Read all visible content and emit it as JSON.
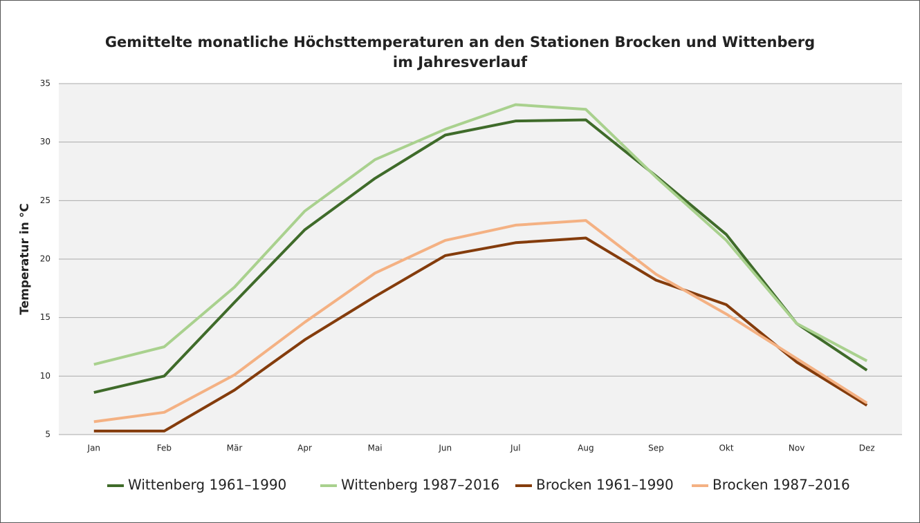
{
  "chart_data": {
    "type": "line",
    "title": [
      "Gemittelte monatliche Höchsttemperaturen an den Stationen Brocken und Wittenberg",
      "im Jahresverlauf"
    ],
    "y_label": "Temperatur in °C",
    "categories": [
      "Jan",
      "Feb",
      "Mär",
      "Apr",
      "Mai",
      "Jun",
      "Jul",
      "Aug",
      "Sep",
      "Okt",
      "Nov",
      "Dez"
    ],
    "series": [
      {
        "name": "Wittenberg 1961–1990",
        "color": "#3f6b2a",
        "values": [
          8.6,
          10.0,
          16.3,
          22.5,
          26.9,
          30.6,
          31.8,
          31.9,
          27.1,
          22.1,
          14.5,
          10.5
        ]
      },
      {
        "name": "Wittenberg 1987–2016",
        "color": "#a9d18e",
        "values": [
          11.0,
          12.5,
          17.6,
          24.1,
          28.5,
          31.1,
          33.2,
          32.8,
          27.0,
          21.6,
          14.5,
          11.3
        ]
      },
      {
        "name": "Brocken 1961–1990",
        "color": "#843c0c",
        "values": [
          5.3,
          5.3,
          8.8,
          13.1,
          16.8,
          20.3,
          21.4,
          21.8,
          18.2,
          16.1,
          11.2,
          7.5
        ]
      },
      {
        "name": "Brocken 1987–2016",
        "color": "#f4b183",
        "values": [
          6.1,
          6.9,
          10.1,
          14.6,
          18.8,
          21.6,
          22.9,
          23.3,
          18.7,
          15.3,
          11.5,
          7.7
        ]
      }
    ],
    "ylim": [
      5,
      35
    ],
    "yticks": [
      5,
      10,
      15,
      20,
      25,
      30,
      35
    ],
    "grid": true,
    "legend": "bottom"
  }
}
